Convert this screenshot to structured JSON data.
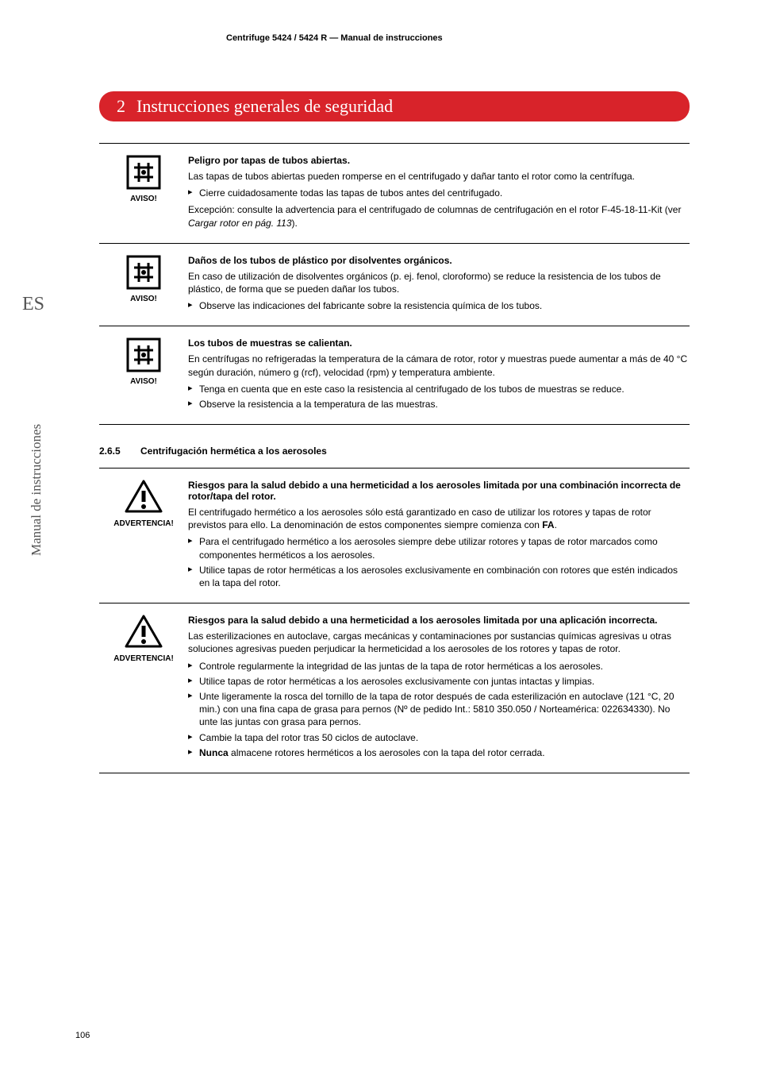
{
  "header": "Centrifuge 5424 / 5424 R  —  Manual de instrucciones",
  "chapter": {
    "number": "2",
    "title": "Instrucciones generales de seguridad"
  },
  "sideLang": "ES",
  "sideManual": "Manual de instrucciones",
  "pageNum": "106",
  "labels": {
    "aviso": "AVISO!",
    "advertencia": "ADVERTENCIA!"
  },
  "blocks": [
    {
      "icon": "notice",
      "label": "aviso",
      "title": "Peligro por tapas de tubos abiertas.",
      "paras1": [
        "Las tapas de tubos abiertas pueden romperse en el centrifugado y dañar tanto el rotor como la centrífuga."
      ],
      "bullets": [
        "Cierre cuidadosamente todas las tapas de tubos antes del centrifugado."
      ],
      "paras2": [
        "Excepción: consulte la advertencia para el centrifugado de columnas de centrifugación en el rotor F-45-18-11-Kit (ver <em class='it'>Cargar rotor en pág. 113</em>)."
      ]
    },
    {
      "icon": "notice",
      "label": "aviso",
      "title": "Daños de los tubos de plástico por disolventes orgánicos.",
      "paras1": [
        "En caso de utilización de disolventes orgánicos (p. ej. fenol, cloroformo) se reduce la resistencia de los tubos de plástico, de forma que se pueden dañar los tubos."
      ],
      "bullets": [
        "Observe las indicaciones del fabricante sobre la resistencia química de los tubos."
      ]
    },
    {
      "icon": "notice",
      "label": "aviso",
      "title": "Los tubos de muestras se calientan.",
      "paras1": [
        "En centrífugas no refrigeradas la temperatura de la cámara de rotor, rotor y muestras puede aumentar a más de 40 °C según duración, número g (rcf), velocidad (rpm) y temperatura ambiente."
      ],
      "bullets": [
        "Tenga en cuenta que en este caso la resistencia al centrifugado de los tubos de muestras se reduce.",
        "Observe la resistencia a la temperatura de las muestras."
      ]
    }
  ],
  "section": {
    "num": "2.6.5",
    "title": "Centrifugación hermética a los aerosoles"
  },
  "blocks2": [
    {
      "icon": "warning",
      "label": "advertencia",
      "title": "Riesgos para la salud debido a una hermeticidad a los aerosoles limitada por una combinación incorrecta de rotor/tapa del rotor.",
      "paras1": [
        "El centrifugado hermético a los aerosoles sólo está garantizado en caso de utilizar los rotores y tapas de rotor previstos para ello. La denominación de estos componentes siempre comienza con <b>FA</b>."
      ],
      "bullets": [
        "Para el centrifugado hermético a los aerosoles siempre debe utilizar rotores y tapas de rotor marcados como componentes herméticos a los aerosoles.",
        "Utilice tapas de rotor herméticas a los aerosoles exclusivamente en combinación con rotores que estén indicados en la tapa del rotor."
      ]
    },
    {
      "icon": "warning",
      "label": "advertencia",
      "title": "Riesgos para la salud debido a una hermeticidad a los aerosoles limitada por una aplicación incorrecta.",
      "paras1": [
        "Las esterilizaciones en autoclave, cargas mecánicas y contaminaciones por sustancias químicas agresivas u otras soluciones agresivas pueden perjudicar la hermeticidad a los aerosoles de los rotores y tapas de rotor."
      ],
      "bullets": [
        "Controle regularmente la integridad de las juntas de la tapa de rotor herméticas a los aerosoles.",
        "Utilice tapas de rotor herméticas a los aerosoles exclusivamente con juntas intactas y limpias.",
        "Unte ligeramente la rosca del tornillo de la tapa de rotor después de cada esterilización en autoclave (121 °C, 20 min.) con una fina capa de grasa para pernos (Nº de pedido Int.: 5810 350.050 / Norteamérica: 022634330). No unte las juntas con grasa para pernos.",
        "Cambie la tapa del rotor tras 50 ciclos de autoclave.",
        "<b>Nunca</b> almacene rotores herméticos a los aerosoles con la tapa del rotor cerrada."
      ]
    }
  ]
}
